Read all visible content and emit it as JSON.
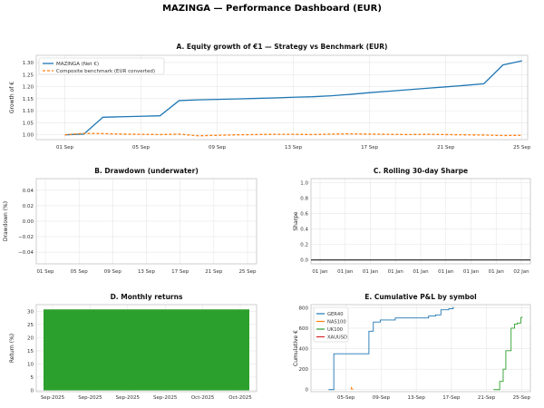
{
  "suptitle": "MAZINGA — Performance Dashboard (EUR)",
  "chart_data": [
    {
      "id": "equity",
      "type": "line",
      "title": "A. Equity growth of €1 — Strategy vs Benchmark (EUR)",
      "xlabel": "",
      "ylabel": "Growth of €",
      "x_ticks": [
        "01 Sep",
        "05 Sep",
        "09 Sep",
        "13 Sep",
        "17 Sep",
        "21 Sep",
        "25 Sep"
      ],
      "xlim": [
        -0.5,
        25.3
      ],
      "ylim": [
        0.98,
        1.33
      ],
      "y_ticks": [
        1.0,
        1.05,
        1.1,
        1.15,
        1.2,
        1.25,
        1.3
      ],
      "y_tick_labels": [
        "1.00",
        "1.05",
        "1.10",
        "1.15",
        "1.20",
        "1.25",
        "1.30"
      ],
      "grid": true,
      "legend": "upper-left",
      "series": [
        {
          "name": "MAZINGA (Net €)",
          "color": "#1f77b4",
          "style": "solid",
          "x": [
            1,
            2,
            3,
            4,
            5,
            6,
            7,
            8,
            9,
            10,
            11,
            12,
            13,
            14,
            15,
            16,
            17,
            18,
            19,
            20,
            21,
            22,
            23,
            24,
            25
          ],
          "y": [
            1.0,
            1.003,
            1.073,
            1.075,
            1.077,
            1.079,
            1.142,
            1.145,
            1.147,
            1.149,
            1.151,
            1.153,
            1.156,
            1.158,
            1.162,
            1.168,
            1.175,
            1.181,
            1.187,
            1.193,
            1.199,
            1.205,
            1.212,
            1.29,
            1.307
          ]
        },
        {
          "name": "Composite benchmark (EUR converted)",
          "color": "#ff7f0e",
          "style": "dashed",
          "x": [
            1,
            2,
            3,
            4,
            5,
            6,
            7,
            8,
            9,
            10,
            11,
            12,
            13,
            14,
            15,
            16,
            17,
            18,
            19,
            20,
            21,
            22,
            23,
            24,
            25
          ],
          "y": [
            1.0,
            1.006,
            1.005,
            1.003,
            1.002,
            1.001,
            1.003,
            0.996,
            0.998,
            1.0,
            1.001,
            1.002,
            1.002,
            1.001,
            1.003,
            1.004,
            1.003,
            1.002,
            1.001,
            1.002,
            1.001,
            1.0,
            0.999,
            0.997,
            0.998
          ]
        }
      ]
    },
    {
      "id": "drawdown",
      "type": "line",
      "title": "B. Drawdown (underwater)",
      "xlabel": "",
      "ylabel": "Drawdown (%)",
      "x_ticks": [
        "01 Sep",
        "05 Sep",
        "09 Sep",
        "13 Sep",
        "17 Sep",
        "21 Sep",
        "25 Sep"
      ],
      "ylim": [
        -0.055,
        0.055
      ],
      "y_ticks": [
        -0.04,
        -0.02,
        0.0,
        0.02,
        0.04
      ],
      "y_tick_labels": [
        "−0.04",
        "−0.02",
        "0.00",
        "0.02",
        "0.04"
      ],
      "grid": true,
      "series": []
    },
    {
      "id": "sharpe",
      "type": "line",
      "title": "C. Rolling 30-day Sharpe",
      "xlabel": "",
      "ylabel": "Sharpe",
      "x_ticks": [
        "01 Jan",
        "01 Jan",
        "01 Jan",
        "01 Jan",
        "01 Jan",
        "01 Jan",
        "01 Jan",
        "01 Jan",
        "02 Jan"
      ],
      "ylim": [
        -0.05,
        1.05
      ],
      "y_ticks": [
        0.0,
        0.2,
        0.4,
        0.6,
        0.8,
        1.0
      ],
      "y_tick_labels": [
        "0.0",
        "0.2",
        "0.4",
        "0.6",
        "0.8",
        "1.0"
      ],
      "grid": true,
      "series": [
        {
          "name": "",
          "color": "#000000",
          "style": "solid",
          "x": [
            0,
            1
          ],
          "y": [
            0.0,
            0.0
          ]
        }
      ]
    },
    {
      "id": "monthly",
      "type": "bar",
      "title": "D. Monthly returns",
      "xlabel": "",
      "ylabel": "Return (%)",
      "x_ticks": [
        "Sep-2025",
        "Sep-2025",
        "Sep-2025",
        "Sep-2025",
        "Oct-2025",
        "Oct-2025"
      ],
      "categories": [
        "Sep-2025"
      ],
      "values": [
        30.7
      ],
      "color": "#2ca02c",
      "ylim": [
        -0.5,
        32.5
      ],
      "y_ticks": [
        0,
        5,
        10,
        15,
        20,
        25,
        30
      ],
      "y_tick_labels": [
        "0",
        "5",
        "10",
        "15",
        "20",
        "25",
        "30"
      ],
      "grid": true
    },
    {
      "id": "pnl",
      "type": "line",
      "title": "E. Cumulative P&L by symbol",
      "xlabel": "",
      "ylabel": "Cumulative €",
      "x_ticks": [
        "05-Sep",
        "09-Sep",
        "13-Sep",
        "17-Sep",
        "21-Sep",
        "25-Sep"
      ],
      "xlim": [
        1,
        26
      ],
      "ylim": [
        -20,
        830
      ],
      "y_ticks": [
        0,
        200,
        400,
        600,
        800
      ],
      "y_tick_labels": [
        "0",
        "200",
        "400",
        "600",
        "800"
      ],
      "grid": true,
      "legend": "upper-left",
      "series": [
        {
          "name": "GER40",
          "color": "#1f77b4",
          "x": [
            3,
            3.6,
            3.6,
            7.6,
            7.6,
            8.1,
            8.1,
            8.9,
            8.9,
            10.6,
            10.6,
            14.4,
            14.4,
            15.2,
            15.2,
            15.8,
            15.8,
            16.7,
            16.7,
            17.2,
            17.2
          ],
          "y": [
            0,
            0,
            350,
            350,
            570,
            570,
            660,
            660,
            680,
            680,
            700,
            700,
            720,
            720,
            730,
            730,
            780,
            780,
            790,
            790,
            810
          ]
        },
        {
          "name": "NAS100",
          "color": "#ff7f0e",
          "x": [
            5.6,
            5.6,
            5.8
          ],
          "y": [
            0,
            20,
            0
          ]
        },
        {
          "name": "UK100",
          "color": "#2ca02c",
          "x": [
            21.8,
            22.5,
            22.5,
            22.9,
            22.9,
            23.2,
            23.2,
            23.8,
            23.8,
            24.2,
            24.2,
            24.5,
            24.5,
            24.9,
            24.9,
            25.1
          ],
          "y": [
            0,
            0,
            80,
            80,
            200,
            200,
            380,
            380,
            600,
            600,
            640,
            640,
            650,
            650,
            700,
            710
          ]
        },
        {
          "name": "XAUUSD",
          "color": "#d62728",
          "x": [],
          "y": []
        }
      ]
    }
  ]
}
